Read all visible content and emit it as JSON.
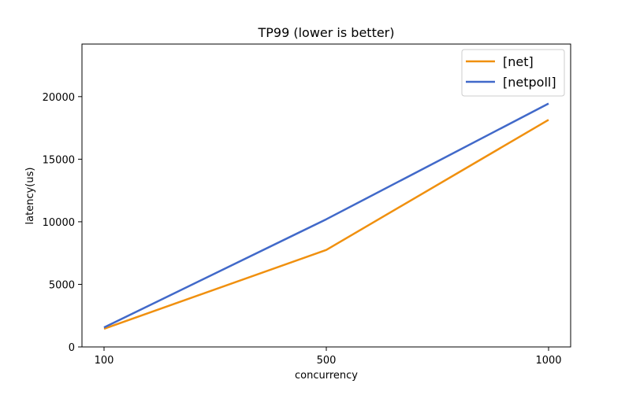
{
  "chart_data": {
    "type": "line",
    "title": "TP99 (lower is better)",
    "xlabel": "concurrency",
    "ylabel": "latency(us)",
    "x": [
      100,
      500,
      1000
    ],
    "x_tick_labels": [
      "100",
      "500",
      "1000"
    ],
    "y_ticks": [
      0,
      5000,
      10000,
      15000,
      20000
    ],
    "y_tick_labels": [
      "0",
      "5000",
      "10000",
      "15000",
      "20000"
    ],
    "ylim": [
      0,
      24200
    ],
    "grid": false,
    "legend_position": "top-right",
    "series": [
      {
        "name": "[net]",
        "color": "#f0900f",
        "values": [
          1450,
          7750,
          18150
        ]
      },
      {
        "name": "[netpoll]",
        "color": "#4169c9",
        "values": [
          1550,
          10200,
          19450
        ]
      }
    ]
  }
}
